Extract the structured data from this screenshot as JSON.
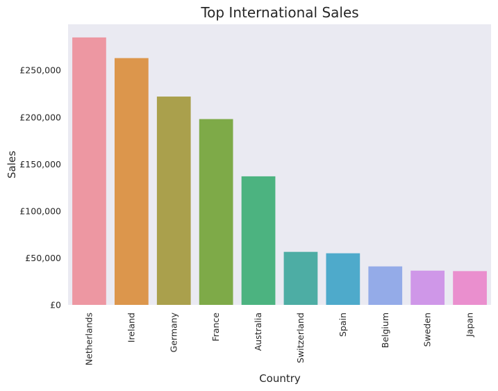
{
  "chart_data": {
    "type": "bar",
    "title": "Top International Sales",
    "xlabel": "Country",
    "ylabel": "Sales",
    "categories": [
      "Netherlands",
      "Ireland",
      "Germany",
      "France",
      "Australia",
      "Switzerland",
      "Spain",
      "Belgium",
      "Sweden",
      "Japan"
    ],
    "values": [
      285000,
      263000,
      222000,
      198000,
      137000,
      56500,
      55000,
      41000,
      36500,
      36000
    ],
    "colors": [
      "#ED97A2",
      "#DC964C",
      "#AAA04C",
      "#7EAA48",
      "#4CB380",
      "#4DADA4",
      "#4EAACB",
      "#94ABE8",
      "#CF97E8",
      "#EA8FCE"
    ],
    "ylim": [
      0,
      299000
    ],
    "yticks": [
      0,
      50000,
      100000,
      150000,
      200000,
      250000
    ],
    "ytick_labels": [
      "£0",
      "£50,000",
      "£100,000",
      "£150,000",
      "£200,000",
      "£250,000"
    ],
    "background": "#EAEAF2",
    "grid": false,
    "legend": "none"
  }
}
